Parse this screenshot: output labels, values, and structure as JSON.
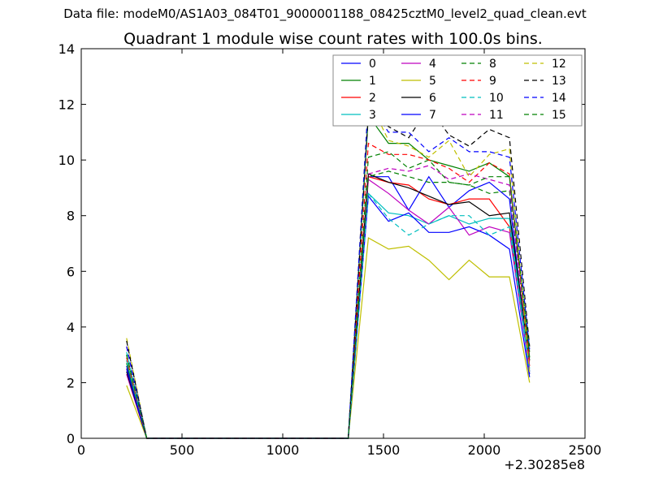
{
  "suptitle": "Data file: modeM0/AS1A03_084T01_9000001188_08425cztM0_level2_quad_clean.evt",
  "chart_data": {
    "type": "line",
    "title": "Quadrant 1 module wise count rates with 100.0s bins.",
    "xlabel": "",
    "ylabel": "",
    "xlim": [
      0,
      2500
    ],
    "ylim": [
      0,
      14
    ],
    "x_offset_label": "+2.30285e8",
    "xticks": [
      0,
      500,
      1000,
      1500,
      2000,
      2500
    ],
    "yticks": [
      0,
      2,
      4,
      6,
      8,
      10,
      12,
      14
    ],
    "grid": false,
    "legend": {
      "placement": "top-right",
      "columns": 4
    },
    "x": [
      225,
      325,
      425,
      525,
      625,
      725,
      825,
      925,
      1025,
      1125,
      1225,
      1325,
      1425,
      1525,
      1625,
      1725,
      1825,
      1925,
      2025,
      2125,
      2225
    ],
    "series": [
      {
        "name": "0",
        "color": "#0000ff",
        "dash": "solid",
        "values": [
          2.6,
          0,
          0,
          0,
          0,
          0,
          0,
          0,
          0,
          0,
          0,
          0,
          9.4,
          9.4,
          8.2,
          9.4,
          8.3,
          8.9,
          9.2,
          8.6,
          2.3
        ]
      },
      {
        "name": "1",
        "color": "#008000",
        "dash": "solid",
        "values": [
          2.7,
          0,
          0,
          0,
          0,
          0,
          0,
          0,
          0,
          0,
          0,
          0,
          11.6,
          10.6,
          10.6,
          10.0,
          9.8,
          9.6,
          9.9,
          9.4,
          2.9
        ]
      },
      {
        "name": "2",
        "color": "#ff0000",
        "dash": "solid",
        "values": [
          2.5,
          0,
          0,
          0,
          0,
          0,
          0,
          0,
          0,
          0,
          0,
          0,
          9.4,
          9.2,
          9.1,
          8.6,
          8.4,
          8.6,
          8.6,
          7.6,
          2.6
        ]
      },
      {
        "name": "3",
        "color": "#00bfbf",
        "dash": "solid",
        "values": [
          2.8,
          0,
          0,
          0,
          0,
          0,
          0,
          0,
          0,
          0,
          0,
          0,
          8.8,
          8.1,
          8.0,
          7.7,
          8.0,
          7.7,
          7.9,
          7.9,
          2.5
        ]
      },
      {
        "name": "4",
        "color": "#bf00bf",
        "dash": "solid",
        "values": [
          2.3,
          0,
          0,
          0,
          0,
          0,
          0,
          0,
          0,
          0,
          0,
          0,
          9.3,
          8.8,
          8.2,
          7.7,
          8.3,
          7.3,
          7.6,
          7.4,
          2.4
        ]
      },
      {
        "name": "5",
        "color": "#bfbf00",
        "dash": "solid",
        "values": [
          1.9,
          0,
          0,
          0,
          0,
          0,
          0,
          0,
          0,
          0,
          0,
          0,
          7.2,
          6.8,
          6.9,
          6.4,
          5.7,
          6.4,
          5.8,
          5.8,
          2.0
        ]
      },
      {
        "name": "6",
        "color": "#000000",
        "dash": "solid",
        "values": [
          2.4,
          0,
          0,
          0,
          0,
          0,
          0,
          0,
          0,
          0,
          0,
          0,
          9.5,
          9.2,
          9.0,
          8.7,
          8.4,
          8.5,
          8.0,
          8.1,
          2.8
        ]
      },
      {
        "name": "7",
        "color": "#0000ff",
        "dash": "solid",
        "values": [
          2.5,
          0,
          0,
          0,
          0,
          0,
          0,
          0,
          0,
          0,
          0,
          0,
          8.7,
          7.8,
          8.1,
          7.4,
          7.4,
          7.6,
          7.3,
          6.8,
          2.2
        ]
      },
      {
        "name": "8",
        "color": "#008000",
        "dash": "dashed",
        "values": [
          3.0,
          0,
          0,
          0,
          0,
          0,
          0,
          0,
          0,
          0,
          0,
          0,
          10.1,
          10.3,
          9.7,
          10.0,
          9.2,
          9.1,
          8.8,
          8.9,
          2.9
        ]
      },
      {
        "name": "9",
        "color": "#ff0000",
        "dash": "dashed",
        "values": [
          2.9,
          0,
          0,
          0,
          0,
          0,
          0,
          0,
          0,
          0,
          0,
          0,
          10.6,
          10.2,
          10.2,
          10.0,
          9.7,
          9.2,
          9.9,
          9.5,
          2.7
        ]
      },
      {
        "name": "10",
        "color": "#00bfbf",
        "dash": "dashed",
        "values": [
          3.1,
          0,
          0,
          0,
          0,
          0,
          0,
          0,
          0,
          0,
          0,
          0,
          8.8,
          7.9,
          7.3,
          7.7,
          8.0,
          8.0,
          7.3,
          7.6,
          2.4
        ]
      },
      {
        "name": "11",
        "color": "#bf00bf",
        "dash": "dashed",
        "values": [
          3.3,
          0,
          0,
          0,
          0,
          0,
          0,
          0,
          0,
          0,
          0,
          0,
          9.5,
          9.7,
          9.6,
          9.8,
          9.3,
          9.5,
          9.3,
          9.1,
          2.6
        ]
      },
      {
        "name": "12",
        "color": "#bfbf00",
        "dash": "dashed",
        "values": [
          3.6,
          0,
          0,
          0,
          0,
          0,
          0,
          0,
          0,
          0,
          0,
          0,
          12.2,
          10.7,
          10.5,
          10.1,
          10.7,
          9.4,
          10.2,
          10.4,
          2.3
        ]
      },
      {
        "name": "13",
        "color": "#000000",
        "dash": "dashed",
        "values": [
          3.5,
          0,
          0,
          0,
          0,
          0,
          0,
          0,
          0,
          0,
          0,
          0,
          11.7,
          11.2,
          10.8,
          11.9,
          10.9,
          10.5,
          11.1,
          10.8,
          3.3
        ]
      },
      {
        "name": "14",
        "color": "#0000ff",
        "dash": "dashed",
        "values": [
          3.3,
          0,
          0,
          0,
          0,
          0,
          0,
          0,
          0,
          0,
          0,
          0,
          12.1,
          11.0,
          11.0,
          10.3,
          10.8,
          10.3,
          10.3,
          10.1,
          3.2
        ]
      },
      {
        "name": "15",
        "color": "#008000",
        "dash": "dashed",
        "values": [
          3.0,
          0,
          0,
          0,
          0,
          0,
          0,
          0,
          0,
          0,
          0,
          0,
          9.4,
          9.6,
          9.4,
          9.2,
          9.2,
          9.1,
          9.4,
          9.4,
          3.1
        ]
      }
    ]
  }
}
